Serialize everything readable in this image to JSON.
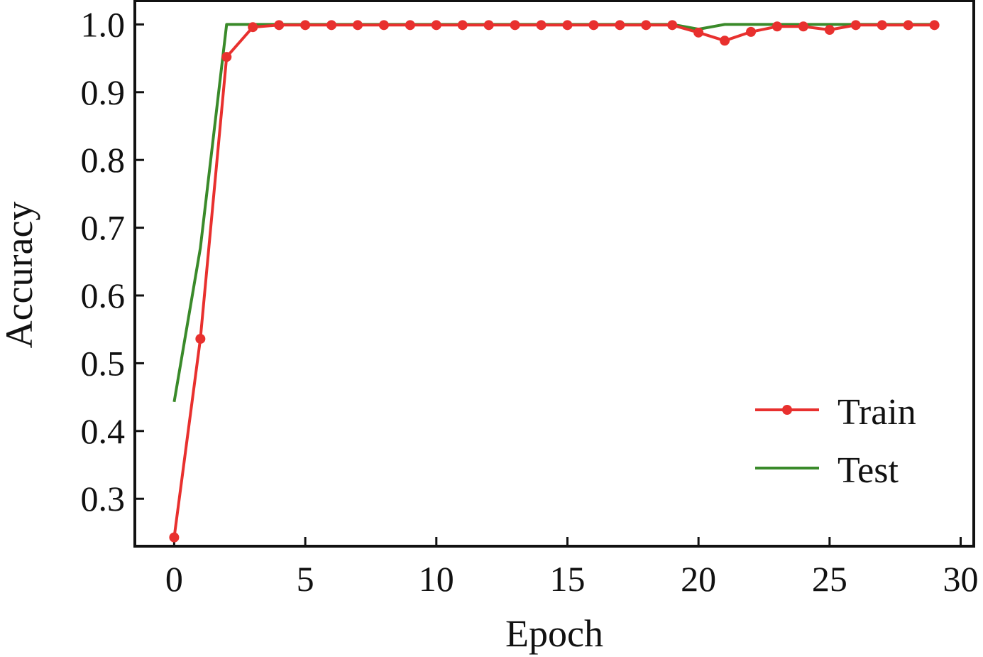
{
  "chart_data": {
    "type": "line",
    "title": "",
    "xlabel": "Epoch",
    "ylabel": "Accuracy",
    "xlim": [
      -1.5,
      30.5
    ],
    "ylim": [
      0.23,
      1.035
    ],
    "xticks": [
      0,
      5,
      10,
      15,
      20,
      25,
      30
    ],
    "xtick_labels": [
      "0",
      "5",
      "10",
      "15",
      "20",
      "25",
      "30"
    ],
    "yticks": [
      0.3,
      0.4,
      0.5,
      0.6,
      0.7,
      0.8,
      0.9,
      1.0
    ],
    "ytick_labels": [
      "0.3",
      "0.4",
      "0.5",
      "0.6",
      "0.7",
      "0.8",
      "0.9",
      "1.0"
    ],
    "grid": false,
    "legend": "lower-right",
    "series": [
      {
        "name": "Train",
        "color": "#e8302e",
        "marker": "circle",
        "x": [
          0,
          1,
          2,
          3,
          4,
          5,
          6,
          7,
          8,
          9,
          10,
          11,
          12,
          13,
          14,
          15,
          16,
          17,
          18,
          19,
          20,
          21,
          22,
          23,
          24,
          25,
          26,
          27,
          28,
          29
        ],
        "y": [
          0.243,
          0.536,
          0.952,
          0.996,
          0.999,
          0.999,
          0.999,
          0.999,
          0.999,
          0.999,
          0.999,
          0.999,
          0.999,
          0.999,
          0.999,
          0.999,
          0.999,
          0.999,
          0.999,
          0.999,
          0.988,
          0.976,
          0.989,
          0.997,
          0.997,
          0.992,
          0.999,
          0.999,
          0.999,
          0.999
        ]
      },
      {
        "name": "Test",
        "color": "#3a8a2a",
        "marker": "none",
        "x": [
          0,
          1,
          2,
          3,
          4,
          5,
          6,
          7,
          8,
          9,
          10,
          11,
          12,
          13,
          14,
          15,
          16,
          17,
          18,
          19,
          20,
          21,
          22,
          23,
          24,
          25,
          26,
          27,
          28,
          29
        ],
        "y": [
          0.443,
          0.67,
          1.0,
          1.0,
          1.0,
          1.0,
          1.0,
          1.0,
          1.0,
          1.0,
          1.0,
          1.0,
          1.0,
          1.0,
          1.0,
          1.0,
          1.0,
          1.0,
          1.0,
          1.0,
          0.993,
          1.0,
          1.0,
          1.0,
          1.0,
          1.0,
          1.0,
          1.0,
          1.0,
          1.0
        ]
      }
    ]
  }
}
